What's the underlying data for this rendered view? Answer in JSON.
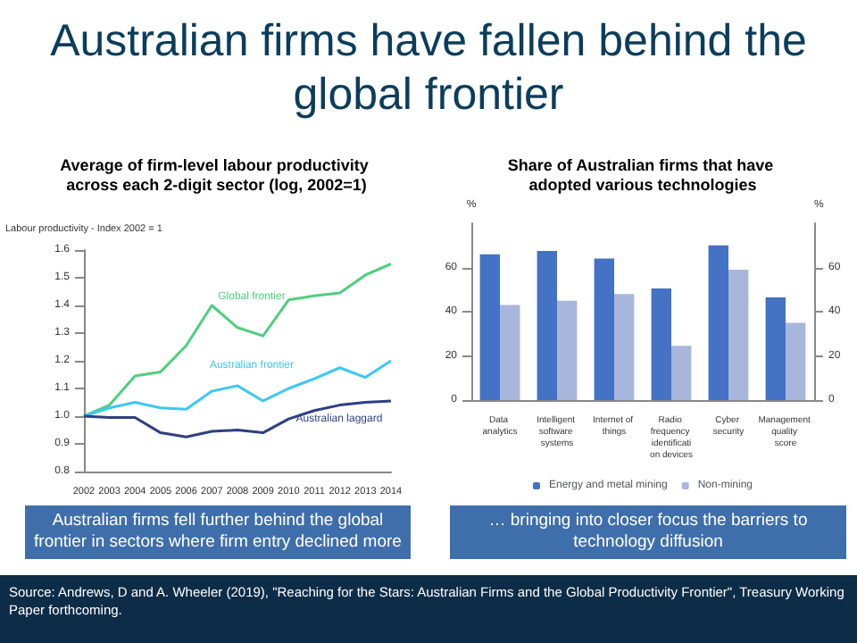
{
  "chart_data": [
    {
      "type": "line",
      "title": "Australian firms have fallen behind the global frontier",
      "subtitle": "Average of firm-level labour productivity across each 2-digit sector (log, 2002=1)",
      "ylabel": "Labour productivity - Index 2002 = 1",
      "categories": [
        "2002",
        "2003",
        "2004",
        "2005",
        "2006",
        "2007",
        "2008",
        "2009",
        "2010",
        "2011",
        "2012",
        "2013",
        "2014"
      ],
      "series": [
        {
          "name": "Global frontier",
          "color": "#4fcf7f",
          "values": [
            1.0,
            1.04,
            1.145,
            1.16,
            1.255,
            1.4,
            1.32,
            1.29,
            1.42,
            1.435,
            1.445,
            1.51,
            1.55
          ]
        },
        {
          "name": "Australian frontier",
          "color": "#3cc8f4",
          "values": [
            1.0,
            1.03,
            1.05,
            1.03,
            1.025,
            1.09,
            1.11,
            1.055,
            1.1,
            1.135,
            1.175,
            1.14,
            1.2
          ]
        },
        {
          "name": "Australian laggard",
          "color": "#2e3f82",
          "values": [
            1.0,
            0.995,
            0.995,
            0.94,
            0.925,
            0.945,
            0.95,
            0.94,
            0.99,
            1.02,
            1.04,
            1.05,
            1.055
          ]
        }
      ],
      "ylim": [
        0.8,
        1.6
      ],
      "yticks": [
        0.8,
        0.9,
        {
          "value": 1,
          "label": "1.0"
        },
        1.1,
        1.2,
        1.3,
        1.4,
        1.5,
        1.6
      ],
      "grid": false,
      "legend": false,
      "marker": "none",
      "line_style": "solid",
      "annotations": [
        "Australian firms fell further behind the global frontier in sectors where firm entry declined more"
      ]
    },
    {
      "type": "bar",
      "title": "Share of Australian firms that have adopted various technologies",
      "ylabel": "%",
      "y2label": "%",
      "categories": [
        "Data analytics",
        "Intelligent software systems",
        "Internet of things",
        "Radio frequency identification devices",
        "Cyber security",
        "Management quality score"
      ],
      "series": [
        {
          "name": "Energy and metal mining",
          "color": "#4472c4",
          "values": [
            66,
            67.5,
            64,
            50.5,
            70,
            46.5
          ]
        },
        {
          "name": "Non-mining",
          "color": "#a9b6dc",
          "values": [
            43,
            45,
            48,
            24.5,
            59,
            35
          ]
        }
      ],
      "ylim": [
        0,
        80
      ],
      "yticks": [
        0,
        20,
        40,
        60
      ],
      "y2lim": [
        0,
        80
      ],
      "y2ticks": [
        0,
        20,
        40,
        60
      ],
      "grid": false,
      "legend": "bottom",
      "annotations": [
        "… bringing into closer focus the barriers to technology diffusion",
        "Source: Andrews, D and A. Wheeler (2019), \"Reaching for the Stars: Australian Firms and the Global Productivity Frontier\", Treasury Working Paper forthcoming."
      ]
    }
  ]
}
